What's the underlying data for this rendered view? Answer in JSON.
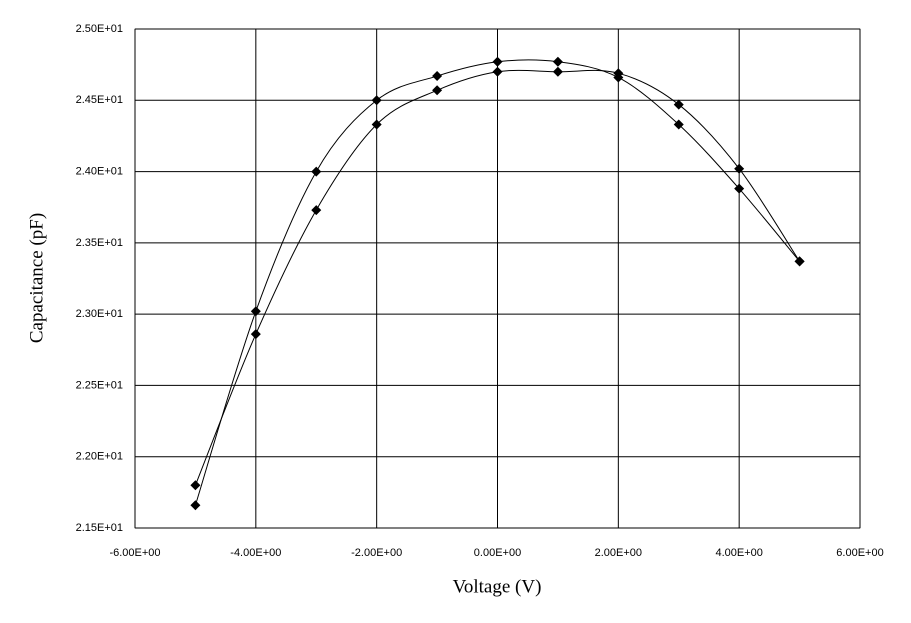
{
  "chart_data": {
    "type": "line",
    "x_label": "Voltage (V)",
    "y_label": "Capacitance (pF)",
    "x": [
      -5,
      -4,
      -3,
      -2,
      -1,
      0,
      1,
      2,
      3,
      4,
      5
    ],
    "series": [
      {
        "color": "#000000",
        "values": [
          21.66,
          23.02,
          24.0,
          24.5,
          24.67,
          24.77,
          24.77,
          24.66,
          24.33,
          23.88,
          23.37
        ]
      },
      {
        "color": "#000000",
        "values": [
          21.8,
          22.86,
          23.73,
          24.33,
          24.57,
          24.7,
          24.7,
          24.69,
          24.47,
          24.02,
          23.37
        ]
      }
    ],
    "xlim": [
      -6,
      6
    ],
    "xticks": [
      {
        "value": -6,
        "label": "-6.00E+00"
      },
      {
        "value": -4,
        "label": "-4.00E+00"
      },
      {
        "value": -2,
        "label": "-2.00E+00"
      },
      {
        "value": 0,
        "label": "0.00E+00"
      },
      {
        "value": 2,
        "label": "2.00E+00"
      },
      {
        "value": 4,
        "label": "4.00E+00"
      },
      {
        "value": 6,
        "label": "6.00E+00"
      }
    ],
    "ylim": [
      21.5,
      25.0
    ],
    "yticks": [
      {
        "value": 21.5,
        "label": "2.15E+01"
      },
      {
        "value": 22.0,
        "label": "2.20E+01"
      },
      {
        "value": 22.5,
        "label": "2.25E+01"
      },
      {
        "value": 23.0,
        "label": "2.30E+01"
      },
      {
        "value": 23.5,
        "label": "2.35E+01"
      },
      {
        "value": 24.0,
        "label": "2.40E+01"
      },
      {
        "value": 24.5,
        "label": "2.45E+01"
      },
      {
        "value": 25.0,
        "label": "2.50E+01"
      }
    ],
    "grid": true,
    "marker": "diamond"
  }
}
